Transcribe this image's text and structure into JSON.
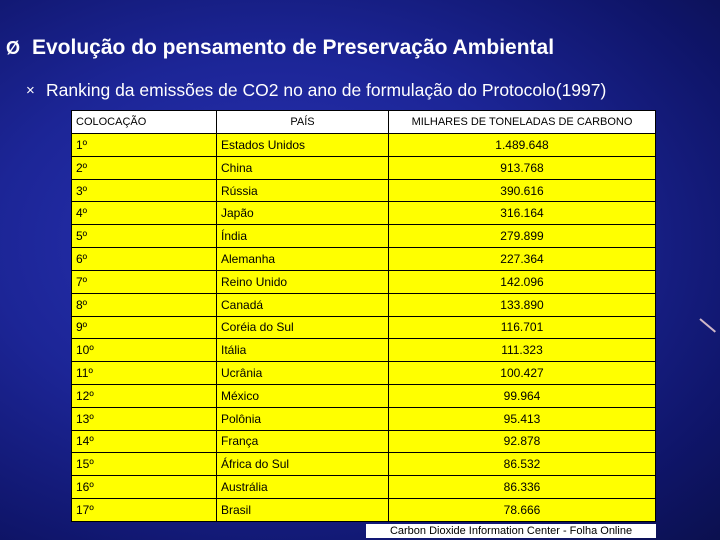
{
  "header": {
    "title_bullet": "Ø",
    "title": "Evolução do pensamento de Preservação Ambiental",
    "subtitle_bullet": "×",
    "subtitle": "Ranking da emissões de CO2 no ano de formulação do Protocolo(1997)"
  },
  "table": {
    "columns": [
      "COLOCAÇÃO",
      "PAÍS",
      "MILHARES DE TONELADAS DE CARBONO"
    ],
    "rows": [
      [
        "1º",
        "Estados Unidos",
        "1.489.648"
      ],
      [
        "2º",
        "China",
        "913.768"
      ],
      [
        "3º",
        "Rússia",
        "390.616"
      ],
      [
        "4º",
        "Japão",
        "316.164"
      ],
      [
        "5º",
        "Índia",
        "279.899"
      ],
      [
        "6º",
        "Alemanha",
        "227.364"
      ],
      [
        "7º",
        "Reino Unido",
        "142.096"
      ],
      [
        "8º",
        "Canadá",
        "133.890"
      ],
      [
        "9º",
        "Coréia do Sul",
        "116.701"
      ],
      [
        "10º",
        "Itália",
        "111.323"
      ],
      [
        "11º",
        "Ucrânia",
        "100.427"
      ],
      [
        "12º",
        "México",
        "99.964"
      ],
      [
        "13º",
        "Polônia",
        "95.413"
      ],
      [
        "14º",
        "França",
        "92.878"
      ],
      [
        "15º",
        "África do Sul",
        "86.532"
      ],
      [
        "16º",
        "Austrália",
        "86.336"
      ],
      [
        "17º",
        "Brasil",
        "78.666"
      ]
    ]
  },
  "source": "Carbon Dioxide Information Center - Folha Online",
  "colors": {
    "background": "#1c2596",
    "row_fill": "#ffff00",
    "header_fill": "#ffffff"
  }
}
